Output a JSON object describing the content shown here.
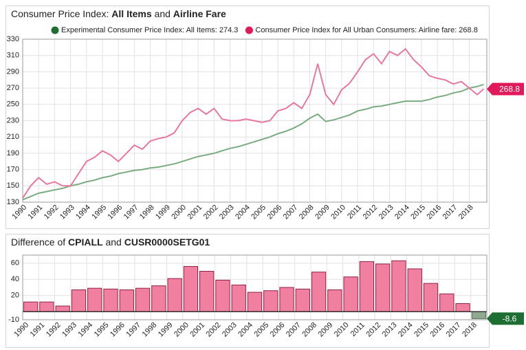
{
  "chart_data": [
    {
      "type": "line",
      "title": [
        "Consumer Price Index: ",
        "All Items",
        " and ",
        "Airline Fare"
      ],
      "x": [
        1990,
        1990.5,
        1991,
        1991.5,
        1992,
        1992.5,
        1993,
        1993.5,
        1994,
        1994.5,
        1995,
        1995.5,
        1996,
        1996.5,
        1997,
        1997.5,
        1998,
        1998.5,
        1999,
        1999.5,
        2000,
        2000.5,
        2001,
        2001.5,
        2002,
        2002.5,
        2003,
        2003.5,
        2004,
        2004.5,
        2005,
        2005.5,
        2006,
        2006.5,
        2007,
        2007.5,
        2008,
        2008.5,
        2009,
        2009.5,
        2010,
        2010.5,
        2011,
        2011.5,
        2012,
        2012.5,
        2013,
        2013.5,
        2014,
        2014.5,
        2015,
        2015.5,
        2016,
        2016.5,
        2017,
        2017.5,
        2018,
        2018.5,
        2018.9
      ],
      "series": [
        {
          "name": "Experimental Consumer Price Index: All Items: 274.3",
          "color": "#7aab80",
          "values": [
            133,
            137,
            141,
            143,
            145,
            147,
            150,
            152,
            155,
            157,
            160,
            162,
            165,
            167,
            169,
            170,
            172,
            173,
            175,
            177,
            180,
            183,
            186,
            188,
            190,
            193,
            196,
            198,
            201,
            204,
            207,
            210,
            214,
            217,
            221,
            226,
            233,
            238,
            229,
            231,
            234,
            237,
            242,
            244,
            247,
            248,
            250,
            252,
            254,
            254,
            254,
            256,
            259,
            261,
            264,
            266,
            270,
            272,
            274.3
          ]
        },
        {
          "name": "Consumer Price Index for All Urban Consumers: Airline fare: 268.8",
          "color": "#e8779c",
          "values": [
            135,
            150,
            160,
            152,
            155,
            150,
            150,
            165,
            180,
            185,
            193,
            188,
            180,
            190,
            200,
            195,
            205,
            208,
            210,
            215,
            230,
            240,
            245,
            238,
            245,
            232,
            230,
            230,
            232,
            230,
            228,
            230,
            242,
            245,
            252,
            245,
            262,
            300,
            262,
            250,
            268,
            276,
            290,
            305,
            312,
            300,
            315,
            310,
            318,
            305,
            296,
            285,
            282,
            280,
            275,
            278,
            270,
            262,
            268.8
          ]
        }
      ],
      "xlim": [
        1990,
        2019.1
      ],
      "xticks": [
        1990,
        1991,
        1992,
        1993,
        1994,
        1995,
        1996,
        1997,
        1998,
        1999,
        2000,
        2001,
        2002,
        2003,
        2004,
        2005,
        2006,
        2007,
        2008,
        2009,
        2010,
        2011,
        2012,
        2013,
        2014,
        2015,
        2016,
        2017,
        2018
      ],
      "ylim": [
        130,
        330
      ],
      "yticks": [
        130,
        150,
        170,
        190,
        210,
        230,
        250,
        270,
        290,
        310,
        330
      ],
      "grid": true
    },
    {
      "type": "bar",
      "title": [
        "Difference of ",
        "CPIALL",
        " and ",
        "CUSR0000SETG01"
      ],
      "categories": [
        "1990",
        "1991",
        "1992",
        "1993",
        "1994",
        "1995",
        "1996",
        "1997",
        "1998",
        "1999",
        "2000",
        "2001",
        "2002",
        "2003",
        "2004",
        "2005",
        "2006",
        "2007",
        "2008",
        "2009",
        "2010",
        "2011",
        "2012",
        "2013",
        "2014",
        "2015",
        "2016",
        "2017",
        "2018"
      ],
      "values": [
        12,
        12,
        7,
        27,
        29,
        28,
        27,
        29,
        32,
        41,
        56,
        50,
        39,
        33,
        24,
        26,
        30,
        28,
        49,
        27,
        43,
        62,
        59,
        63,
        53,
        35,
        22,
        10,
        -8.6
      ],
      "color": "#f07fa0",
      "negative_color": "#8fa88f",
      "ylim": [
        -10,
        70
      ],
      "yticks": [
        -10,
        20,
        40,
        60
      ],
      "grid": true
    }
  ]
}
